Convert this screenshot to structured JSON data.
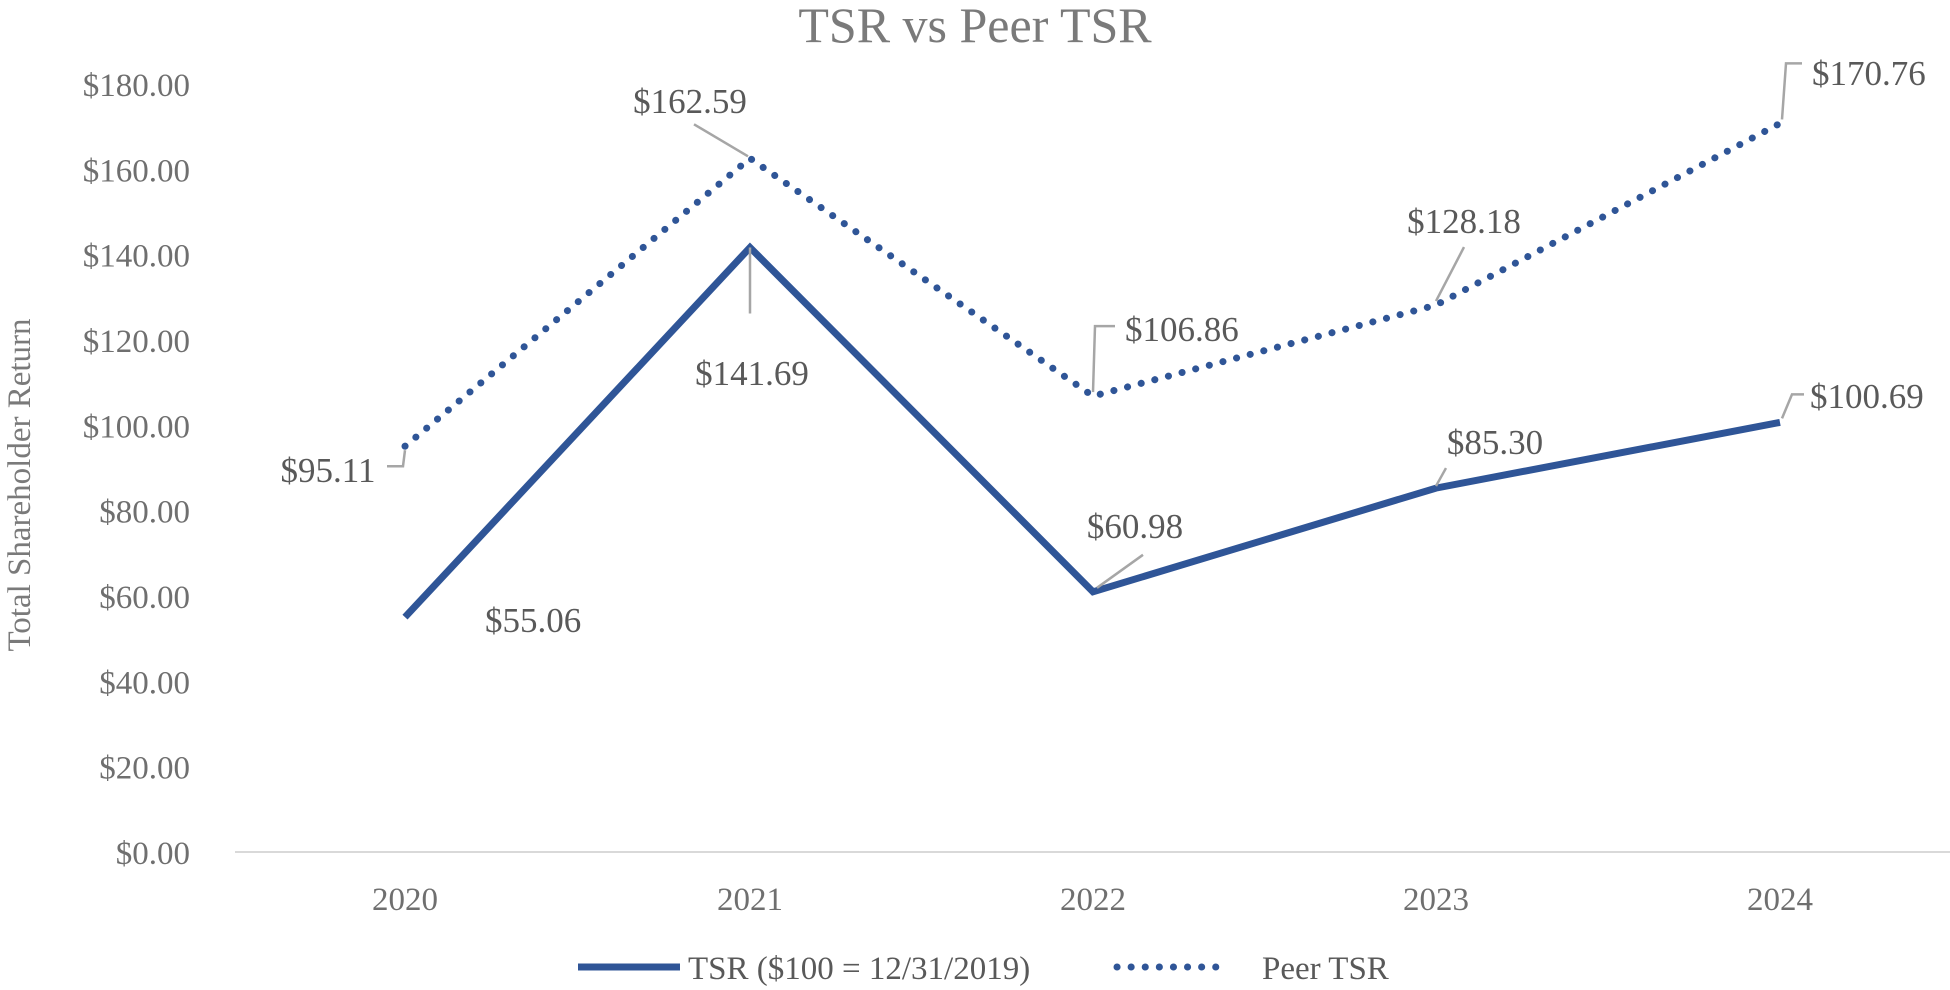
{
  "chart_data": {
    "type": "line",
    "title": "TSR vs Peer TSR",
    "ylabel": "Total Shareholder Return",
    "xlabel": "",
    "categories": [
      "2020",
      "2021",
      "2022",
      "2023",
      "2024"
    ],
    "ylim": [
      0,
      180
    ],
    "ytick_values": [
      0,
      20,
      40,
      60,
      80,
      100,
      120,
      140,
      160,
      180
    ],
    "ytick_labels": [
      "$0.00",
      "$20.00",
      "$40.00",
      "$60.00",
      "$80.00",
      "$100.00",
      "$120.00",
      "$140.00",
      "$160.00",
      "$180.00"
    ],
    "grid": false,
    "legend_position": "bottom",
    "series": [
      {
        "name": "TSR ($100 = 12/31/2019)",
        "style": "solid",
        "color": "#2f5597",
        "values": [
          55.06,
          141.69,
          60.98,
          85.3,
          100.69
        ],
        "labels": [
          "$55.06",
          "$141.69",
          "$60.98",
          "$85.30",
          "$100.69"
        ]
      },
      {
        "name": "Peer TSR",
        "style": "dotted",
        "color": "#2f5597",
        "values": [
          95.11,
          162.59,
          106.86,
          128.18,
          170.76
        ],
        "labels": [
          "$95.11",
          "$162.59",
          "$106.86",
          "$128.18",
          "$170.76"
        ]
      }
    ]
  }
}
